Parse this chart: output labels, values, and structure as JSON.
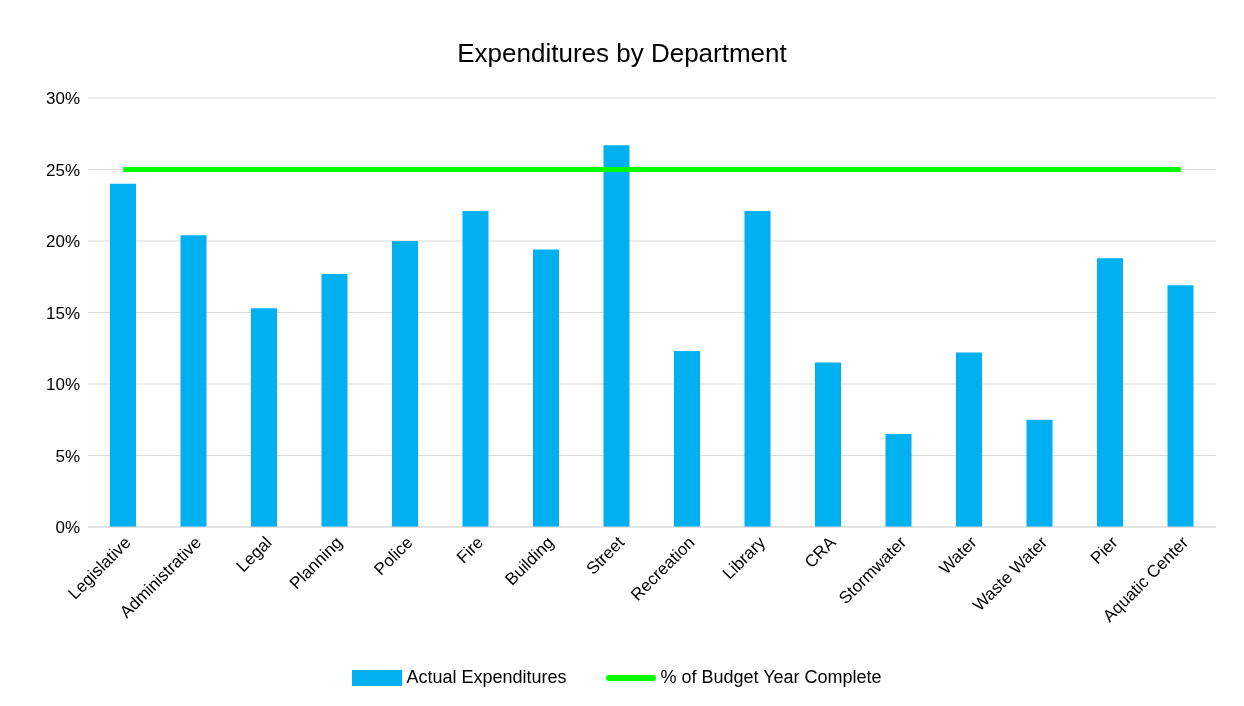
{
  "chart_data": {
    "type": "bar",
    "title": "Expenditures by Department",
    "categories": [
      "Legislative",
      "Administrative",
      "Legal",
      "Planning",
      "Police",
      "Fire",
      "Building",
      "Street",
      "Recreation",
      "Library",
      "CRA",
      "Stormwater",
      "Water",
      "Waste Water",
      "Pier",
      "Aquatic Center"
    ],
    "series": [
      {
        "name": "Actual Expenditures",
        "color": "#00b0f0",
        "values": [
          24.0,
          20.4,
          15.3,
          17.7,
          20.0,
          22.1,
          19.4,
          26.7,
          12.3,
          22.1,
          11.5,
          6.5,
          12.2,
          7.5,
          18.8,
          16.9
        ]
      },
      {
        "name": "% of Budget Year Complete",
        "type": "line",
        "color": "#00ff00",
        "values": [
          25,
          25,
          25,
          25,
          25,
          25,
          25,
          25,
          25,
          25,
          25,
          25,
          25,
          25,
          25,
          25
        ]
      }
    ],
    "ylim": [
      0,
      30
    ],
    "yticks": [
      {
        "value": 0,
        "label": "0%"
      },
      {
        "value": 5,
        "label": "5%"
      },
      {
        "value": 10,
        "label": "10%"
      },
      {
        "value": 15,
        "label": "15%"
      },
      {
        "value": 20,
        "label": "20%"
      },
      {
        "value": 25,
        "label": "25%"
      },
      {
        "value": 30,
        "label": "30%"
      }
    ],
    "grid": "y",
    "legend": "bottom",
    "marker": "none"
  }
}
